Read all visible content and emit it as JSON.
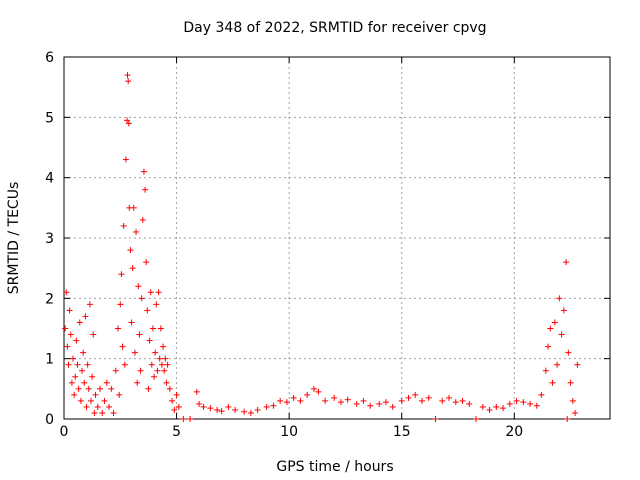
{
  "chart_data": {
    "type": "scatter",
    "title": "Day 348 of 2022, SRMTID for receiver cpvg",
    "xlabel": "GPS time / hours",
    "ylabel": "SRMTID / TECUs",
    "xlim": [
      0,
      24.25
    ],
    "ylim": [
      0,
      6
    ],
    "x_ticks": [
      0,
      5,
      10,
      15,
      20
    ],
    "y_ticks": [
      0,
      1,
      2,
      3,
      4,
      5,
      6
    ],
    "x_tick_labels": [
      "0",
      "5",
      "10",
      "15",
      "20"
    ],
    "y_tick_labels": [
      "0",
      "1",
      "2",
      "3",
      "4",
      "5",
      "6"
    ],
    "grid": true,
    "marker": "+",
    "marker_color": "#ff0000",
    "series": [
      {
        "name": "SRMTID",
        "points": [
          [
            0.05,
            1.5
          ],
          [
            0.1,
            2.1
          ],
          [
            0.15,
            1.2
          ],
          [
            0.2,
            0.9
          ],
          [
            0.25,
            1.8
          ],
          [
            0.3,
            1.4
          ],
          [
            0.35,
            0.6
          ],
          [
            0.4,
            1.0
          ],
          [
            0.45,
            0.4
          ],
          [
            0.5,
            0.7
          ],
          [
            0.55,
            1.3
          ],
          [
            0.6,
            0.9
          ],
          [
            0.65,
            0.5
          ],
          [
            0.7,
            1.6
          ],
          [
            0.75,
            0.3
          ],
          [
            0.8,
            0.8
          ],
          [
            0.85,
            1.1
          ],
          [
            0.9,
            0.6
          ],
          [
            0.95,
            1.7
          ],
          [
            1.0,
            0.2
          ],
          [
            1.05,
            0.9
          ],
          [
            1.1,
            0.5
          ],
          [
            1.15,
            1.9
          ],
          [
            1.2,
            0.3
          ],
          [
            1.25,
            0.7
          ],
          [
            1.3,
            1.4
          ],
          [
            1.35,
            0.1
          ],
          [
            1.4,
            0.4
          ],
          [
            1.5,
            0.2
          ],
          [
            1.6,
            0.5
          ],
          [
            1.7,
            0.1
          ],
          [
            1.8,
            0.3
          ],
          [
            1.9,
            0.6
          ],
          [
            2.0,
            0.2
          ],
          [
            2.1,
            0.5
          ],
          [
            2.2,
            0.1
          ],
          [
            2.3,
            0.8
          ],
          [
            2.4,
            1.5
          ],
          [
            2.45,
            0.4
          ],
          [
            2.5,
            1.9
          ],
          [
            2.55,
            2.4
          ],
          [
            2.6,
            1.2
          ],
          [
            2.65,
            3.2
          ],
          [
            2.7,
            0.9
          ],
          [
            2.75,
            4.3
          ],
          [
            2.8,
            4.95
          ],
          [
            2.82,
            5.7
          ],
          [
            2.85,
            5.6
          ],
          [
            2.88,
            4.9
          ],
          [
            2.9,
            3.5
          ],
          [
            2.95,
            2.8
          ],
          [
            3.0,
            1.6
          ],
          [
            3.05,
            2.5
          ],
          [
            3.1,
            3.5
          ],
          [
            3.15,
            1.1
          ],
          [
            3.2,
            3.1
          ],
          [
            3.25,
            0.6
          ],
          [
            3.3,
            2.2
          ],
          [
            3.35,
            1.4
          ],
          [
            3.4,
            0.8
          ],
          [
            3.45,
            2.0
          ],
          [
            3.5,
            3.3
          ],
          [
            3.55,
            4.1
          ],
          [
            3.6,
            3.8
          ],
          [
            3.65,
            2.6
          ],
          [
            3.7,
            1.8
          ],
          [
            3.75,
            0.5
          ],
          [
            3.8,
            1.3
          ],
          [
            3.85,
            2.1
          ],
          [
            3.9,
            0.9
          ],
          [
            3.95,
            1.5
          ],
          [
            4.0,
            0.7
          ],
          [
            4.05,
            1.1
          ],
          [
            4.1,
            1.9
          ],
          [
            4.15,
            0.8
          ],
          [
            4.2,
            2.1
          ],
          [
            4.25,
            1.0
          ],
          [
            4.3,
            1.5
          ],
          [
            4.35,
            0.9
          ],
          [
            4.4,
            1.2
          ],
          [
            4.45,
            0.8
          ],
          [
            4.5,
            1.0
          ],
          [
            4.55,
            0.6
          ],
          [
            4.6,
            0.9
          ],
          [
            4.7,
            0.5
          ],
          [
            4.8,
            0.3
          ],
          [
            4.9,
            0.15
          ],
          [
            5.0,
            0.4
          ],
          [
            5.1,
            0.2
          ],
          [
            5.3,
            0.0
          ],
          [
            5.6,
            0.0
          ],
          [
            5.9,
            0.45
          ],
          [
            6.0,
            0.25
          ],
          [
            6.2,
            0.2
          ],
          [
            6.5,
            0.18
          ],
          [
            6.8,
            0.15
          ],
          [
            7.0,
            0.13
          ],
          [
            7.3,
            0.2
          ],
          [
            7.6,
            0.15
          ],
          [
            8.0,
            0.12
          ],
          [
            8.3,
            0.1
          ],
          [
            8.6,
            0.15
          ],
          [
            9.0,
            0.2
          ],
          [
            9.3,
            0.22
          ],
          [
            9.6,
            0.3
          ],
          [
            9.9,
            0.28
          ],
          [
            10.2,
            0.35
          ],
          [
            10.5,
            0.3
          ],
          [
            10.8,
            0.4
          ],
          [
            11.1,
            0.5
          ],
          [
            11.3,
            0.45
          ],
          [
            11.6,
            0.3
          ],
          [
            12.0,
            0.35
          ],
          [
            12.3,
            0.28
          ],
          [
            12.6,
            0.32
          ],
          [
            13.0,
            0.25
          ],
          [
            13.3,
            0.3
          ],
          [
            13.6,
            0.22
          ],
          [
            14.0,
            0.25
          ],
          [
            14.3,
            0.28
          ],
          [
            14.6,
            0.2
          ],
          [
            15.0,
            0.3
          ],
          [
            15.3,
            0.35
          ],
          [
            15.6,
            0.4
          ],
          [
            15.9,
            0.3
          ],
          [
            16.2,
            0.35
          ],
          [
            16.5,
            0.0
          ],
          [
            16.8,
            0.3
          ],
          [
            17.1,
            0.35
          ],
          [
            17.4,
            0.28
          ],
          [
            17.7,
            0.3
          ],
          [
            18.0,
            0.25
          ],
          [
            18.3,
            0.0
          ],
          [
            18.6,
            0.2
          ],
          [
            18.9,
            0.15
          ],
          [
            19.2,
            0.2
          ],
          [
            19.5,
            0.18
          ],
          [
            19.8,
            0.25
          ],
          [
            20.1,
            0.3
          ],
          [
            20.4,
            0.28
          ],
          [
            20.7,
            0.25
          ],
          [
            21.0,
            0.22
          ],
          [
            21.2,
            0.4
          ],
          [
            21.4,
            0.8
          ],
          [
            21.5,
            1.2
          ],
          [
            21.6,
            1.5
          ],
          [
            21.7,
            0.6
          ],
          [
            21.8,
            1.6
          ],
          [
            21.9,
            0.9
          ],
          [
            22.0,
            2.0
          ],
          [
            22.1,
            1.4
          ],
          [
            22.2,
            1.8
          ],
          [
            22.3,
            2.6
          ],
          [
            22.35,
            0.0
          ],
          [
            22.4,
            1.1
          ],
          [
            22.5,
            0.6
          ],
          [
            22.6,
            0.3
          ],
          [
            22.7,
            0.1
          ],
          [
            22.8,
            0.9
          ]
        ]
      }
    ]
  }
}
